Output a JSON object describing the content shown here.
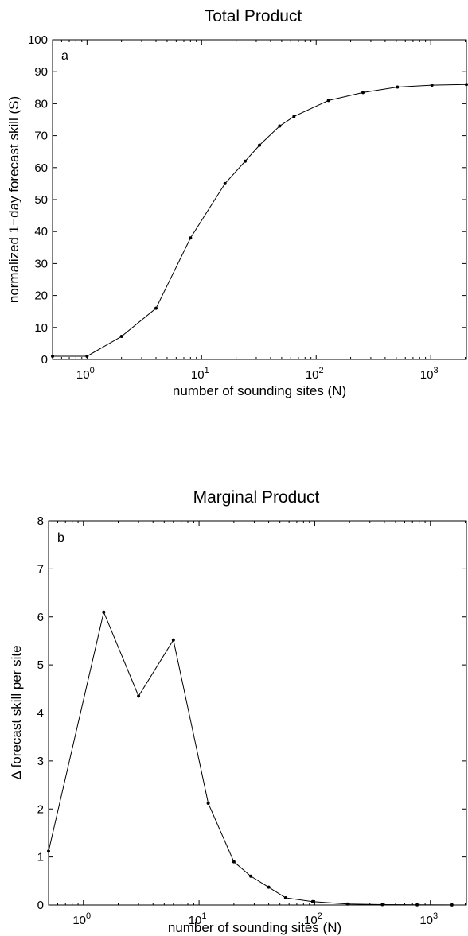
{
  "chart_data": [
    {
      "type": "line",
      "title": "Total Product",
      "panel_label": "a",
      "xlabel": "number of sounding sites (N)",
      "ylabel": "normalized 1−day forecast skill (S)",
      "xscale": "log",
      "xlim": [
        0.5,
        2048
      ],
      "ylim": [
        0,
        100
      ],
      "yticks": [
        "0",
        "10",
        "20",
        "30",
        "40",
        "50",
        "60",
        "70",
        "80",
        "90",
        "100"
      ],
      "xticks": [
        {
          "value": 1,
          "base": "10",
          "exp": "0"
        },
        {
          "value": 10,
          "base": "10",
          "exp": "1"
        },
        {
          "value": 100,
          "base": "10",
          "exp": "2"
        },
        {
          "value": 1000,
          "base": "10",
          "exp": "3"
        }
      ],
      "grid": false,
      "series": [
        {
          "x": [
            0.5,
            1,
            2,
            4,
            8,
            16,
            24,
            32,
            48,
            64,
            128,
            256,
            512,
            1024,
            2048
          ],
          "y": [
            1,
            1,
            7.2,
            16,
            38,
            55,
            62,
            67,
            73,
            76,
            81,
            83.5,
            85.2,
            85.8,
            86
          ]
        }
      ]
    },
    {
      "type": "line",
      "title": "Marginal Product",
      "panel_label": "b",
      "xlabel": "number of sounding sites (N)",
      "ylabel": "Δ forecast skill per site",
      "xscale": "log",
      "xlim": [
        0.5,
        2048
      ],
      "ylim": [
        0,
        8
      ],
      "yticks": [
        "0",
        "1",
        "2",
        "3",
        "4",
        "5",
        "6",
        "7",
        "8"
      ],
      "xticks": [
        {
          "value": 1,
          "base": "10",
          "exp": "0"
        },
        {
          "value": 10,
          "base": "10",
          "exp": "1"
        },
        {
          "value": 100,
          "base": "10",
          "exp": "2"
        },
        {
          "value": 1000,
          "base": "10",
          "exp": "3"
        }
      ],
      "grid": false,
      "series": [
        {
          "x": [
            0.5,
            1.5,
            3,
            6,
            12,
            20,
            28,
            40,
            56,
            96,
            192,
            384,
            768,
            1536
          ],
          "y": [
            1.12,
            6.1,
            4.35,
            5.52,
            2.12,
            0.9,
            0.6,
            0.37,
            0.15,
            0.07,
            0.02,
            0.008,
            0.004,
            0.002
          ]
        }
      ]
    }
  ]
}
